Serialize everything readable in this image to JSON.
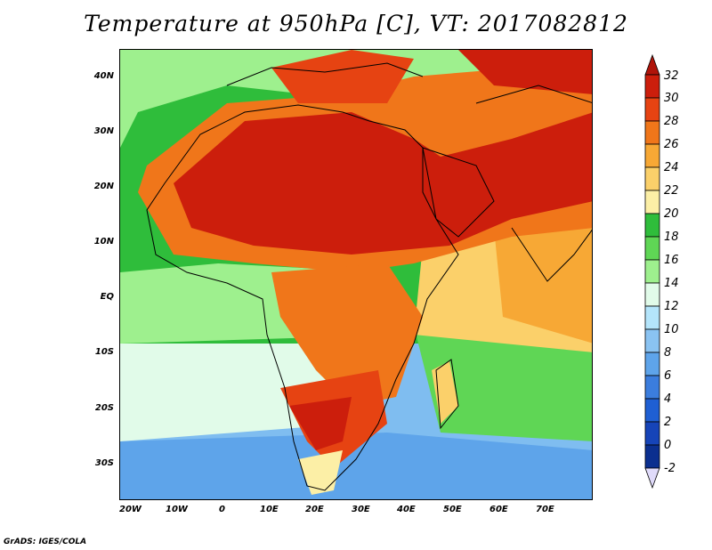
{
  "title": "Temperature at 950hPa [C], VT: 2017082812",
  "footer": "GrADS: IGES/COLA",
  "map": {
    "lon_range": [
      -20,
      80
    ],
    "lat_range": [
      -35,
      45
    ],
    "lat_ticks": [
      "40N",
      "30N",
      "20N",
      "10N",
      "EQ",
      "10S",
      "20S",
      "30S"
    ],
    "lon_ticks": [
      "20W",
      "10W",
      "0",
      "10E",
      "20E",
      "30E",
      "40E",
      "50E",
      "60E",
      "70E"
    ],
    "variable": "temperature",
    "units": "C",
    "level": "950hPa"
  },
  "colorbar": {
    "labels": [
      "32",
      "30",
      "28",
      "26",
      "24",
      "22",
      "20",
      "18",
      "16",
      "14",
      "12",
      "10",
      "8",
      "6",
      "4",
      "2",
      "0",
      "-2"
    ],
    "colors": [
      "#cc1e0c",
      "#e64312",
      "#f0761a",
      "#f7a835",
      "#fbd06a",
      "#fcefa6",
      "#2fbd3b",
      "#5fd655",
      "#9ef08e",
      "#e1fbe9",
      "#b4e5fb",
      "#8ac3f2",
      "#5ea4ea",
      "#3b7ddd",
      "#1f5fd3",
      "#1644b8",
      "#0b2f8f",
      "#2a1a8a"
    ],
    "top_arrow_color": "#b0140a",
    "bottom_arrow_color": "#e0dbfa"
  }
}
